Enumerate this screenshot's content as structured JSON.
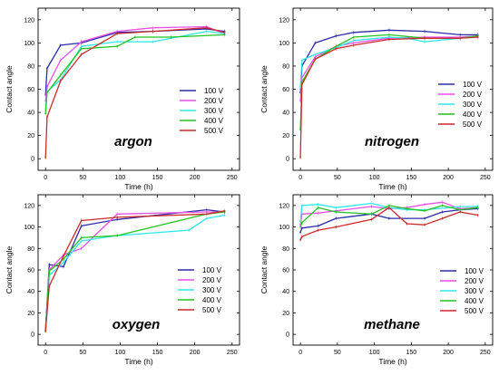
{
  "chart_data": [
    {
      "type": "line",
      "annotation": "argon",
      "xlabel": "Time (h)",
      "ylabel": "Contact angle",
      "xlim": [
        -10,
        260
      ],
      "ylim": [
        -10,
        130
      ],
      "xticks": [
        "0",
        "50",
        "100",
        "150",
        "200",
        "250"
      ],
      "yticks": [
        "0",
        "20",
        "40",
        "60",
        "80",
        "100",
        "120"
      ],
      "xtick_values": [
        0,
        50,
        100,
        150,
        200,
        250
      ],
      "ytick_values": [
        0,
        20,
        40,
        60,
        80,
        100,
        120
      ],
      "legend_position": "right",
      "series": [
        {
          "name": "100 V",
          "color": "#2b2ba8",
          "x": [
            0,
            2,
            20,
            48,
            96,
            144,
            216,
            240
          ],
          "y": [
            55,
            78,
            98,
            100,
            109,
            110,
            112,
            110
          ]
        },
        {
          "name": "200 V",
          "color": "#e84fe8",
          "x": [
            0,
            2,
            20,
            48,
            96,
            144,
            216,
            240
          ],
          "y": [
            50,
            62,
            85,
            101,
            110,
            113,
            114,
            108
          ]
        },
        {
          "name": "300 V",
          "color": "#2ee8e8",
          "x": [
            0,
            2,
            20,
            48,
            96,
            144,
            216,
            240
          ],
          "y": [
            42,
            58,
            68,
            97,
            101,
            101,
            110,
            108
          ]
        },
        {
          "name": "400 V",
          "color": "#22c422",
          "x": [
            0,
            2,
            20,
            48,
            96,
            120,
            168,
            240
          ],
          "y": [
            39,
            57,
            72,
            95,
            97,
            105,
            105,
            107
          ]
        },
        {
          "name": "500 V",
          "color": "#cc2a2a",
          "x": [
            0,
            2,
            20,
            48,
            96,
            144,
            216,
            240
          ],
          "y": [
            1,
            36,
            67,
            90,
            108,
            110,
            113,
            109
          ]
        }
      ]
    },
    {
      "type": "line",
      "annotation": "nitrogen",
      "xlabel": "Time (h)",
      "ylabel": "Contact angle",
      "xlim": [
        -10,
        260
      ],
      "ylim": [
        -10,
        130
      ],
      "xticks": [
        "0",
        "50",
        "100",
        "150",
        "200",
        "250"
      ],
      "yticks": [
        "0",
        "20",
        "40",
        "60",
        "80",
        "100",
        "120"
      ],
      "xtick_values": [
        0,
        50,
        100,
        150,
        200,
        250
      ],
      "ytick_values": [
        0,
        20,
        40,
        60,
        80,
        100,
        120
      ],
      "legend_position": "right",
      "series": [
        {
          "name": "100 V",
          "color": "#2b2ba8",
          "x": [
            0,
            2,
            20,
            48,
            72,
            120,
            168,
            216,
            240
          ],
          "y": [
            57,
            80,
            100,
            106,
            109,
            111,
            110,
            107,
            107
          ]
        },
        {
          "name": "200 V",
          "color": "#e84fe8",
          "x": [
            0,
            2,
            20,
            48,
            72,
            120,
            168,
            216,
            240
          ],
          "y": [
            50,
            70,
            88,
            97,
            100,
            104,
            105,
            105,
            106
          ]
        },
        {
          "name": "300 V",
          "color": "#2ee8e8",
          "x": [
            0,
            2,
            20,
            48,
            72,
            120,
            144,
            168,
            216,
            240
          ],
          "y": [
            62,
            85,
            90,
            96,
            102,
            105,
            104,
            101,
            104,
            105
          ]
        },
        {
          "name": "400 V",
          "color": "#22c422",
          "x": [
            0,
            2,
            20,
            48,
            72,
            120,
            168,
            216,
            240
          ],
          "y": [
            25,
            66,
            86,
            97,
            105,
            107,
            104,
            104,
            106
          ]
        },
        {
          "name": "500 V",
          "color": "#cc2a2a",
          "x": [
            0,
            2,
            20,
            48,
            72,
            120,
            168,
            216,
            240
          ],
          "y": [
            1,
            64,
            86,
            95,
            98,
            103,
            104,
            104,
            105
          ]
        }
      ]
    },
    {
      "type": "line",
      "annotation": "oxygen",
      "xlabel": "Time (h)",
      "ylabel": "Contact angle",
      "xlim": [
        -10,
        260
      ],
      "ylim": [
        -10,
        130
      ],
      "xticks": [
        "0",
        "50",
        "100",
        "150",
        "200",
        "250"
      ],
      "yticks": [
        "0",
        "20",
        "40",
        "60",
        "80",
        "100",
        "120"
      ],
      "xtick_values": [
        0,
        50,
        100,
        150,
        200,
        250
      ],
      "ytick_values": [
        0,
        20,
        40,
        60,
        80,
        100,
        120
      ],
      "legend_position": "right",
      "series": [
        {
          "name": "100 V",
          "color": "#2b2ba8",
          "x": [
            0,
            5,
            24,
            48,
            96,
            216,
            240
          ],
          "y": [
            5,
            65,
            63,
            101,
            107,
            116,
            114
          ]
        },
        {
          "name": "200 V",
          "color": "#e84fe8",
          "x": [
            0,
            5,
            24,
            48,
            96,
            216,
            240
          ],
          "y": [
            4,
            60,
            74,
            80,
            112,
            114,
            114
          ]
        },
        {
          "name": "300 V",
          "color": "#2ee8e8",
          "x": [
            0,
            5,
            24,
            48,
            96,
            192,
            216,
            240
          ],
          "y": [
            3,
            55,
            67,
            87,
            92,
            97,
            108,
            111
          ]
        },
        {
          "name": "400 V",
          "color": "#22c422",
          "x": [
            0,
            5,
            24,
            48,
            96,
            216,
            240
          ],
          "y": [
            3,
            59,
            70,
            90,
            92,
            112,
            114
          ]
        },
        {
          "name": "500 V",
          "color": "#cc2a2a",
          "x": [
            0,
            5,
            24,
            48,
            96,
            216,
            240
          ],
          "y": [
            3,
            45,
            73,
            106,
            109,
            112,
            115
          ]
        }
      ]
    },
    {
      "type": "line",
      "annotation": "methane",
      "xlabel": "Time (h)",
      "ylabel": "Contact angle",
      "xlim": [
        -10,
        260
      ],
      "ylim": [
        -10,
        130
      ],
      "xticks": [
        "0",
        "50",
        "100",
        "150",
        "200",
        "250"
      ],
      "yticks": [
        "0",
        "20",
        "40",
        "60",
        "80",
        "100",
        "120"
      ],
      "xtick_values": [
        0,
        50,
        100,
        150,
        200,
        250
      ],
      "ytick_values": [
        0,
        20,
        40,
        60,
        80,
        100,
        120
      ],
      "legend_position": "right",
      "series": [
        {
          "name": "100 V",
          "color": "#2b2ba8",
          "x": [
            0,
            2,
            24,
            48,
            96,
            120,
            168,
            192,
            216,
            240
          ],
          "y": [
            95,
            99,
            101,
            108,
            112,
            108,
            108,
            114,
            116,
            117
          ]
        },
        {
          "name": "200 V",
          "color": "#e84fe8",
          "x": [
            0,
            2,
            24,
            48,
            96,
            120,
            144,
            168,
            192,
            216,
            240
          ],
          "y": [
            102,
            112,
            113,
            115,
            119,
            117,
            118,
            121,
            123,
            117,
            118
          ]
        },
        {
          "name": "300 V",
          "color": "#2ee8e8",
          "x": [
            0,
            2,
            24,
            48,
            96,
            120,
            144,
            168,
            216,
            240
          ],
          "y": [
            105,
            120,
            121,
            118,
            122,
            118,
            116,
            116,
            119,
            119
          ]
        },
        {
          "name": "400 V",
          "color": "#22c422",
          "x": [
            0,
            2,
            24,
            48,
            96,
            120,
            144,
            168,
            192,
            216,
            240
          ],
          "y": [
            100,
            104,
            118,
            114,
            112,
            120,
            117,
            115,
            120,
            116,
            118
          ]
        },
        {
          "name": "500 V",
          "color": "#cc2a2a",
          "x": [
            0,
            2,
            24,
            48,
            96,
            120,
            144,
            168,
            192,
            216,
            240
          ],
          "y": [
            88,
            91,
            97,
            100,
            107,
            118,
            103,
            102,
            108,
            114,
            111
          ]
        }
      ]
    }
  ]
}
